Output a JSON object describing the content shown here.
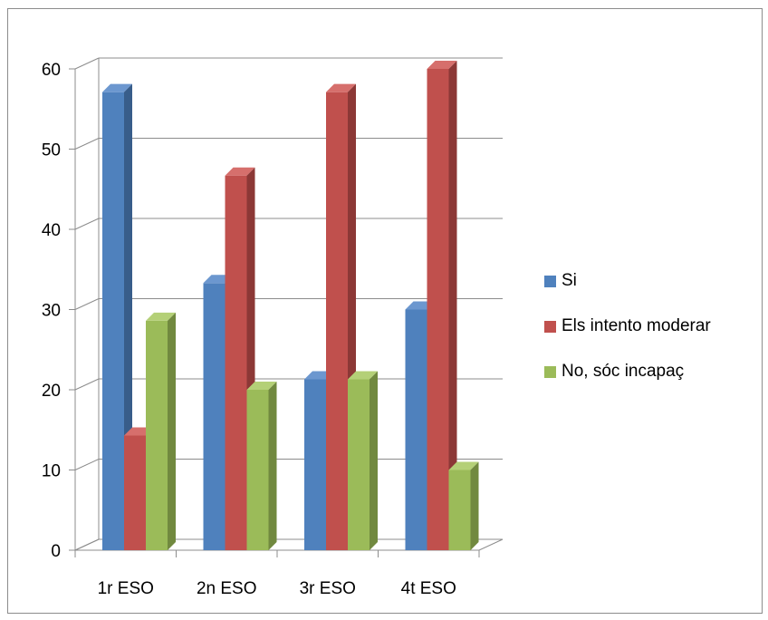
{
  "chart_data": {
    "type": "bar",
    "style": "3d-clustered-column",
    "categories": [
      "1r ESO",
      "2n ESO",
      "3r ESO",
      "4t ESO"
    ],
    "series": [
      {
        "name": "Si",
        "values": [
          57.1,
          33.3,
          21.3,
          30.0
        ],
        "color": "#4f81bd",
        "top": "#6c97cf",
        "side": "#385d8a"
      },
      {
        "name": "Els intento moderar",
        "values": [
          14.3,
          46.7,
          57.1,
          60.0
        ],
        "color": "#c0504d",
        "top": "#d66f6c",
        "side": "#8c3836"
      },
      {
        "name": "No, sóc incapaç",
        "values": [
          28.6,
          20.0,
          21.3,
          10.0
        ],
        "color": "#9bbb59",
        "top": "#b4d077",
        "side": "#71893f"
      }
    ],
    "y_ticks": [
      "0",
      "10",
      "20",
      "30",
      "40",
      "50",
      "60"
    ],
    "ylim": [
      0,
      60
    ],
    "grid": true,
    "legend_position": "right"
  }
}
